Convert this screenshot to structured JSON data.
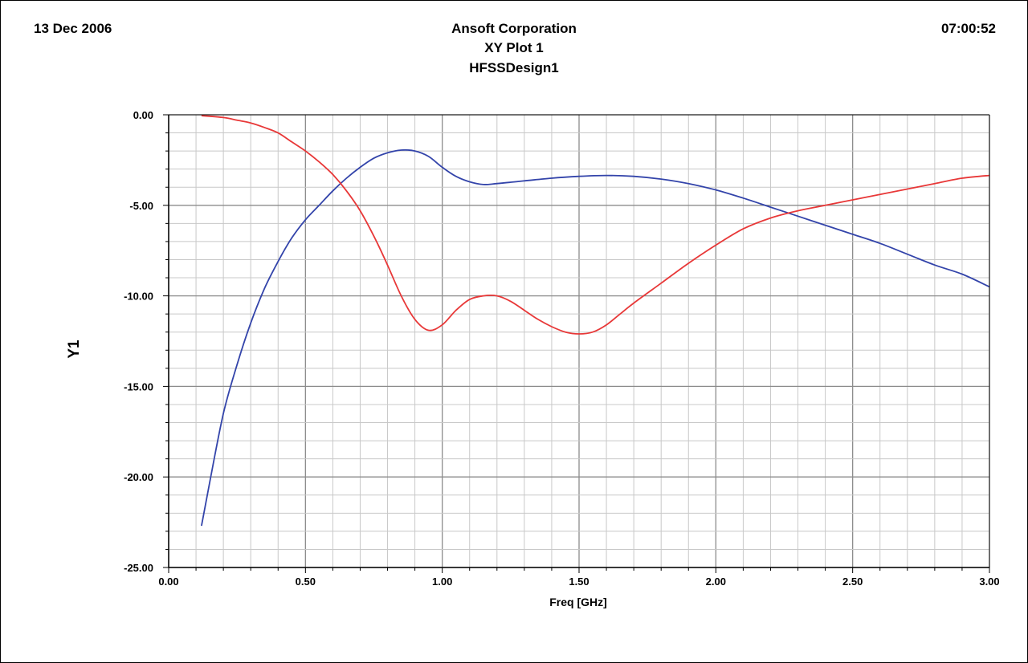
{
  "header": {
    "date": "13 Dec 2006",
    "company": "Ansoft Corporation",
    "plot_name": "XY Plot 1",
    "design_name": "HFSSDesign1",
    "time": "07:00:52"
  },
  "chart_data": {
    "type": "line",
    "xlabel": "Freq [GHz]",
    "ylabel": "Y1",
    "xlim": [
      0,
      3
    ],
    "ylim": [
      -25,
      0
    ],
    "xticks": [
      "0.00",
      "0.50",
      "1.00",
      "1.50",
      "2.00",
      "2.50",
      "3.00"
    ],
    "yticks": [
      "0.00",
      "-5.00",
      "-10.00",
      "-15.00",
      "-20.00",
      "-25.00"
    ],
    "grid": true,
    "series": [
      {
        "color": "#3344aa",
        "x": [
          0.12,
          0.15,
          0.2,
          0.25,
          0.3,
          0.35,
          0.4,
          0.45,
          0.5,
          0.55,
          0.6,
          0.65,
          0.7,
          0.75,
          0.8,
          0.85,
          0.9,
          0.95,
          1.0,
          1.05,
          1.1,
          1.15,
          1.2,
          1.3,
          1.4,
          1.5,
          1.6,
          1.7,
          1.8,
          1.9,
          2.0,
          2.1,
          2.2,
          2.3,
          2.4,
          2.5,
          2.6,
          2.7,
          2.8,
          2.9,
          3.0
        ],
        "y": [
          -22.7,
          -20.3,
          -16.5,
          -13.8,
          -11.5,
          -9.6,
          -8.1,
          -6.8,
          -5.8,
          -5.0,
          -4.2,
          -3.5,
          -2.9,
          -2.4,
          -2.1,
          -1.95,
          -2.0,
          -2.3,
          -2.9,
          -3.4,
          -3.7,
          -3.85,
          -3.8,
          -3.65,
          -3.5,
          -3.4,
          -3.35,
          -3.4,
          -3.55,
          -3.8,
          -4.15,
          -4.6,
          -5.1,
          -5.6,
          -6.1,
          -6.6,
          -7.1,
          -7.7,
          -8.3,
          -8.8,
          -9.5
        ]
      },
      {
        "color": "#e83838",
        "x": [
          0.12,
          0.2,
          0.25,
          0.3,
          0.35,
          0.4,
          0.45,
          0.5,
          0.55,
          0.6,
          0.65,
          0.7,
          0.75,
          0.8,
          0.85,
          0.9,
          0.95,
          1.0,
          1.05,
          1.1,
          1.15,
          1.2,
          1.25,
          1.3,
          1.35,
          1.4,
          1.45,
          1.5,
          1.55,
          1.6,
          1.65,
          1.7,
          1.8,
          1.9,
          2.0,
          2.1,
          2.2,
          2.3,
          2.4,
          2.5,
          2.6,
          2.7,
          2.8,
          2.9,
          3.0
        ],
        "y": [
          -0.05,
          -0.15,
          -0.3,
          -0.45,
          -0.7,
          -1.0,
          -1.5,
          -2.0,
          -2.6,
          -3.3,
          -4.2,
          -5.3,
          -6.7,
          -8.3,
          -10.0,
          -11.3,
          -11.9,
          -11.6,
          -10.8,
          -10.2,
          -10.0,
          -10.0,
          -10.3,
          -10.8,
          -11.3,
          -11.7,
          -12.0,
          -12.1,
          -12.0,
          -11.6,
          -11.0,
          -10.4,
          -9.3,
          -8.2,
          -7.2,
          -6.3,
          -5.7,
          -5.3,
          -5.0,
          -4.7,
          -4.4,
          -4.1,
          -3.8,
          -3.5,
          -3.35
        ]
      }
    ]
  }
}
